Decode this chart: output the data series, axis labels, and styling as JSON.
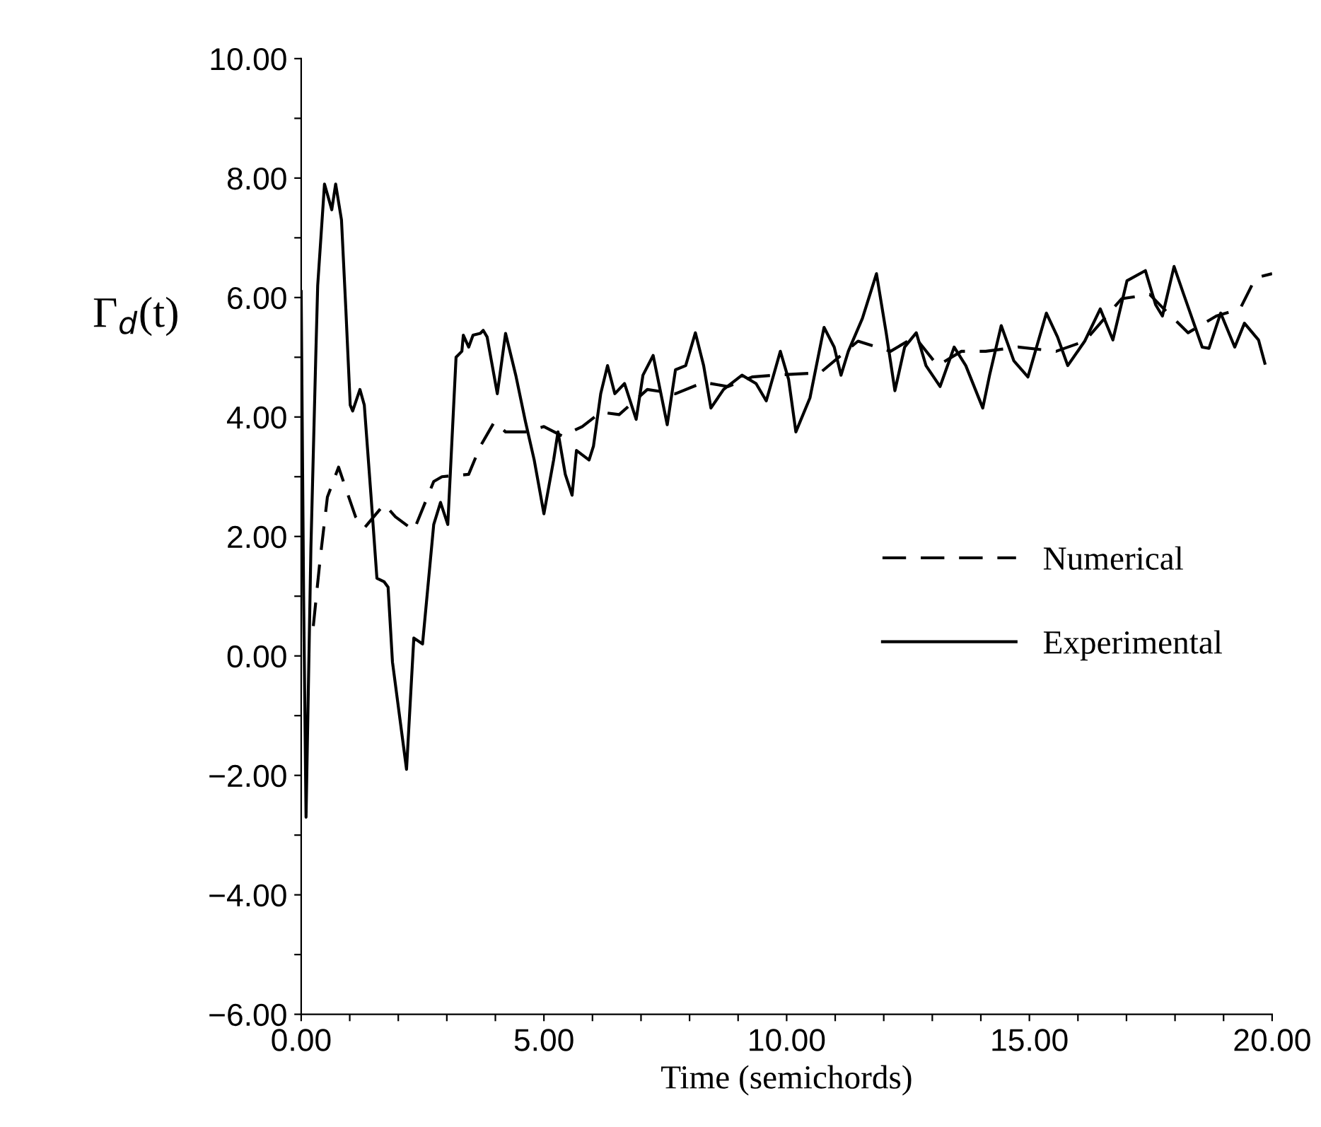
{
  "chart_data": {
    "type": "line",
    "xlabel": "Time (semichords)",
    "ylabel": "Γ$_{d}$(t)",
    "xlim": [
      0,
      20
    ],
    "ylim": [
      -6,
      10
    ],
    "xticks": [
      {
        "value": 0,
        "label": "0.00"
      },
      {
        "value": 1,
        "label": null
      },
      {
        "value": 2,
        "label": null
      },
      {
        "value": 3,
        "label": null
      },
      {
        "value": 4,
        "label": null
      },
      {
        "value": 5,
        "label": "5.00"
      },
      {
        "value": 6,
        "label": null
      },
      {
        "value": 7,
        "label": null
      },
      {
        "value": 8,
        "label": null
      },
      {
        "value": 9,
        "label": null
      },
      {
        "value": 10,
        "label": "10.00"
      },
      {
        "value": 11,
        "label": null
      },
      {
        "value": 12,
        "label": null
      },
      {
        "value": 13,
        "label": null
      },
      {
        "value": 14,
        "label": null
      },
      {
        "value": 15,
        "label": "15.00"
      },
      {
        "value": 16,
        "label": null
      },
      {
        "value": 17,
        "label": null
      },
      {
        "value": 18,
        "label": null
      },
      {
        "value": 19,
        "label": null
      },
      {
        "value": 20,
        "label": "20.00"
      }
    ],
    "yticks": [
      {
        "value": -6,
        "label": "−6.00"
      },
      {
        "value": -5,
        "label": null
      },
      {
        "value": -4,
        "label": "−4.00"
      },
      {
        "value": -3,
        "label": null
      },
      {
        "value": -2,
        "label": "−2.00"
      },
      {
        "value": -1,
        "label": null
      },
      {
        "value": 0,
        "label": "0.00"
      },
      {
        "value": 1,
        "label": null
      },
      {
        "value": 2,
        "label": "2.00"
      },
      {
        "value": 3,
        "label": null
      },
      {
        "value": 4,
        "label": "4.00"
      },
      {
        "value": 5,
        "label": null
      },
      {
        "value": 6,
        "label": "6.00"
      },
      {
        "value": 7,
        "label": null
      },
      {
        "value": 8,
        "label": "8.00"
      },
      {
        "value": 9,
        "label": null
      },
      {
        "value": 10,
        "label": "10.00"
      }
    ],
    "grid": false,
    "legend": "right",
    "series": [
      {
        "name": "Numerical",
        "color": "#000000",
        "line_style": "dashed",
        "x": [
          0.25,
          0.39,
          0.54,
          0.77,
          0.92,
          1.12,
          1.3,
          1.71,
          1.94,
          2.32,
          2.73,
          2.9,
          3.45,
          3.69,
          3.98,
          4.21,
          4.62,
          5.0,
          5.38,
          5.79,
          6.17,
          6.55,
          7.13,
          7.71,
          8.29,
          8.79,
          9.29,
          9.75,
          10.69,
          11.47,
          12.14,
          12.64,
          13.11,
          13.6,
          14.1,
          14.77,
          15.55,
          16.14,
          16.9,
          17.48,
          17.77,
          18.27,
          18.85,
          19.34,
          19.66,
          20.0
        ],
        "values": [
          0.5,
          1.62,
          2.66,
          3.16,
          2.8,
          2.33,
          2.14,
          2.54,
          2.33,
          2.1,
          2.92,
          3.0,
          3.04,
          3.51,
          3.92,
          3.75,
          3.75,
          3.84,
          3.68,
          3.84,
          4.08,
          4.04,
          4.46,
          4.39,
          4.58,
          4.51,
          4.67,
          4.7,
          4.74,
          5.27,
          5.1,
          5.34,
          4.86,
          5.1,
          5.1,
          5.17,
          5.1,
          5.27,
          5.98,
          6.05,
          5.81,
          5.41,
          5.69,
          5.81,
          6.33,
          6.4
        ]
      },
      {
        "name": "Experimental",
        "color": "#000000",
        "line_style": "solid",
        "x": [
          0.0,
          0.05,
          0.1,
          0.2,
          0.3,
          0.34,
          0.48,
          0.63,
          0.71,
          0.83,
          0.92,
          1.01,
          1.06,
          1.21,
          1.3,
          1.44,
          1.56,
          1.71,
          1.79,
          1.88,
          2.17,
          2.32,
          2.5,
          2.73,
          2.87,
          3.02,
          3.19,
          3.31,
          3.34,
          3.45,
          3.54,
          3.69,
          3.75,
          3.83,
          4.04,
          4.21,
          4.42,
          4.62,
          4.8,
          5.0,
          5.2,
          5.29,
          5.44,
          5.58,
          5.67,
          5.93,
          6.02,
          6.17,
          6.31,
          6.46,
          6.66,
          6.9,
          7.04,
          7.25,
          7.54,
          7.71,
          7.92,
          8.12,
          8.29,
          8.44,
          8.7,
          9.08,
          9.37,
          9.58,
          9.87,
          10.04,
          10.19,
          10.48,
          10.77,
          10.98,
          11.12,
          11.27,
          11.56,
          11.85,
          12.05,
          12.23,
          12.43,
          12.67,
          12.87,
          13.16,
          13.45,
          13.69,
          14.04,
          14.18,
          14.42,
          14.68,
          14.97,
          15.35,
          15.58,
          15.79,
          16.14,
          16.46,
          16.72,
          17.01,
          17.39,
          17.6,
          17.74,
          17.98,
          18.18,
          18.56,
          18.7,
          18.94,
          19.23,
          19.43,
          19.72,
          19.85
        ],
        "values": [
          6.1,
          1.0,
          -2.7,
          1.8,
          5.0,
          6.2,
          7.9,
          7.47,
          7.9,
          7.3,
          5.8,
          4.2,
          4.1,
          4.46,
          4.2,
          2.66,
          1.3,
          1.24,
          1.15,
          -0.1,
          -1.9,
          0.3,
          0.2,
          2.2,
          2.57,
          2.2,
          5.0,
          5.1,
          5.37,
          5.17,
          5.37,
          5.4,
          5.45,
          5.34,
          4.39,
          5.4,
          4.7,
          3.92,
          3.28,
          2.38,
          3.28,
          3.75,
          3.04,
          2.69,
          3.44,
          3.28,
          3.51,
          4.39,
          4.86,
          4.39,
          4.56,
          3.96,
          4.7,
          5.03,
          3.87,
          4.79,
          4.86,
          5.41,
          4.86,
          4.15,
          4.46,
          4.7,
          4.56,
          4.27,
          5.1,
          4.63,
          3.75,
          4.32,
          5.5,
          5.17,
          4.7,
          5.1,
          5.65,
          6.4,
          5.41,
          4.44,
          5.17,
          5.41,
          4.86,
          4.51,
          5.17,
          4.86,
          4.15,
          4.7,
          5.53,
          4.94,
          4.67,
          5.74,
          5.34,
          4.86,
          5.27,
          5.81,
          5.29,
          6.28,
          6.45,
          5.88,
          5.69,
          6.52,
          6.05,
          5.17,
          5.15,
          5.74,
          5.17,
          5.57,
          5.29,
          4.9
        ]
      }
    ]
  }
}
